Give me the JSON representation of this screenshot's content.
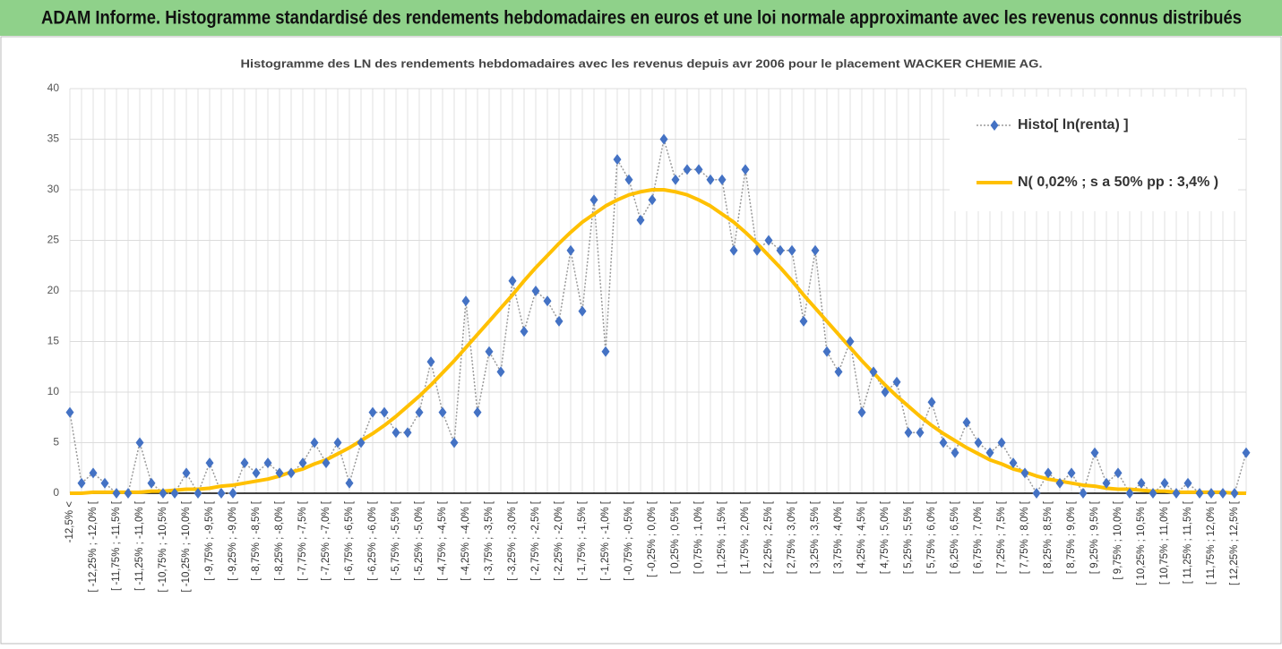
{
  "header": {
    "title": "ADAM Informe. Histogramme standardisé des rendements hebdomadaires en euros et une loi normale approximante avec les revenus connus distribués"
  },
  "chart_data": {
    "type": "line",
    "title": "Histogramme des LN des rendements hebdomadaires avec les revenus depuis avr 2006 pour le placement WACKER CHEMIE AG.",
    "categories": [
      "-12,5% <",
      null,
      "[ -12,25% ; -12,0% [",
      null,
      "[ -11,75% ; -11,5% [",
      null,
      "[ -11,25% ; -11,0% [",
      null,
      "[ -10,75% ; -10,5% [",
      null,
      "[ -10,25% ; -10,0% [",
      null,
      "[ -9,75% ; -9,5% [",
      null,
      "[ -9,25% ; -9,0% [",
      null,
      "[ -8,75% ; -8,5% [",
      null,
      "[ -8,25% ; -8,0% [",
      null,
      "[ -7,75% ; -7,5% [",
      null,
      "[ -7,25% ; -7,0% [",
      null,
      "[ -6,75% ; -6,5% [",
      null,
      "[ -6,25% ; -6,0% [",
      null,
      "[ -5,75% ; -5,5% [",
      null,
      "[ -5,25% ; -5,0% [",
      null,
      "[ -4,75% ; -4,5% [",
      null,
      "[ -4,25% ; -4,0% [",
      null,
      "[ -3,75% ; -3,5% [",
      null,
      "[ -3,25% ; -3,0% [",
      null,
      "[ -2,75% ; -2,5% [",
      null,
      "[ -2,25% ; -2,0% [",
      null,
      "[ -1,75% ; -1,5% [",
      null,
      "[ -1,25% ; -1,0% [",
      null,
      "[ -0,75% ; -0,5% [",
      null,
      "[ -0,25% ; 0,0% [",
      null,
      "[ 0,25% ; 0,5% [",
      null,
      "[ 0,75% ; 1,0% [",
      null,
      "[ 1,25% ; 1,5% [",
      null,
      "[ 1,75% ; 2,0% [",
      null,
      "[ 2,25% ; 2,5% [",
      null,
      "[ 2,75% ; 3,0% [",
      null,
      "[ 3,25% ; 3,5% [",
      null,
      "[ 3,75% ; 4,0% [",
      null,
      "[ 4,25% ; 4,5% [",
      null,
      "[ 4,75% ; 5,0% [",
      null,
      "[ 5,25% ; 5,5% [",
      null,
      "[ 5,75% ; 6,0% [",
      null,
      "[ 6,25% ; 6,5% [",
      null,
      "[ 6,75% ; 7,0% [",
      null,
      "[ 7,25% ; 7,5% [",
      null,
      "[ 7,75% ; 8,0% [",
      null,
      "[ 8,25% ; 8,5% [",
      null,
      "[ 8,75% ; 9,0% [",
      null,
      "[ 9,25% ; 9,5% [",
      null,
      "[ 9,75% ; 10,0% [",
      null,
      "[ 10,25% ; 10,5% [",
      null,
      "[ 10,75% ; 11,0% [",
      null,
      "[ 11,25% ; 11,5% [",
      null,
      "[ 11,75% ; 12,0% [",
      null,
      "[ 12,25% ; 12,5% [",
      null
    ],
    "series": [
      {
        "name": "Histo[ ln(renta) ]",
        "color": "#4472c4",
        "values": [
          8,
          1,
          2,
          1,
          0,
          0,
          5,
          1,
          0,
          0,
          2,
          0,
          3,
          0,
          0,
          3,
          2,
          3,
          2,
          2,
          3,
          5,
          3,
          5,
          1,
          5,
          8,
          8,
          6,
          6,
          8,
          13,
          8,
          5,
          19,
          8,
          14,
          12,
          21,
          16,
          20,
          19,
          17,
          24,
          18,
          29,
          14,
          33,
          31,
          27,
          29,
          35,
          31,
          32,
          32,
          31,
          31,
          24,
          32,
          24,
          25,
          24,
          24,
          17,
          24,
          14,
          12,
          15,
          8,
          12,
          10,
          11,
          6,
          6,
          9,
          5,
          4,
          7,
          5,
          4,
          5,
          3,
          2,
          0,
          2,
          1,
          2,
          0,
          4,
          1,
          2,
          0,
          1,
          0,
          1,
          0,
          1,
          0,
          0,
          0,
          0,
          4
        ]
      },
      {
        "name": "N( 0,02% ; s a 50% pp : 3,4% )",
        "color": "#ffc000",
        "values": [
          0.0,
          0.0,
          0.1,
          0.1,
          0.1,
          0.1,
          0.1,
          0.2,
          0.2,
          0.3,
          0.4,
          0.4,
          0.5,
          0.7,
          0.8,
          1.0,
          1.2,
          1.4,
          1.7,
          2.1,
          2.4,
          2.9,
          3.3,
          3.9,
          4.5,
          5.2,
          5.9,
          6.7,
          7.6,
          8.6,
          9.6,
          10.7,
          11.9,
          13.1,
          14.4,
          15.7,
          17.0,
          18.3,
          19.6,
          21.0,
          22.3,
          23.5,
          24.7,
          25.8,
          26.8,
          27.6,
          28.4,
          29.0,
          29.5,
          29.8,
          30.0,
          30.0,
          29.8,
          29.5,
          29.0,
          28.4,
          27.6,
          26.8,
          25.8,
          24.7,
          23.5,
          22.3,
          21.0,
          19.6,
          18.3,
          17.0,
          15.7,
          14.4,
          13.1,
          11.9,
          10.7,
          9.6,
          8.6,
          7.6,
          6.7,
          5.9,
          5.2,
          4.5,
          3.9,
          3.3,
          2.9,
          2.4,
          2.1,
          1.7,
          1.4,
          1.2,
          1.0,
          0.8,
          0.7,
          0.5,
          0.4,
          0.4,
          0.3,
          0.2,
          0.2,
          0.1,
          0.1,
          0.1,
          0.1,
          0.1,
          0.0,
          0.0
        ]
      }
    ],
    "ylim": [
      0,
      40
    ],
    "yticks": [
      0,
      5,
      10,
      15,
      20,
      25,
      30,
      35,
      40
    ],
    "grid": true,
    "legend": "upper right"
  }
}
